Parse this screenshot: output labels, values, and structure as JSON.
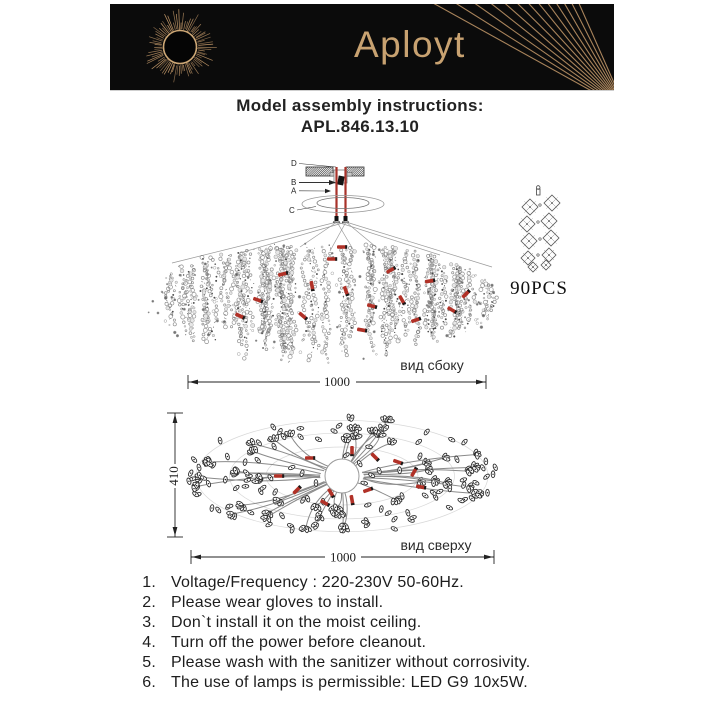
{
  "brand": {
    "name": "Aployt"
  },
  "title": {
    "line1": "Model assembly instructions:",
    "line2": "APL.846.13.10"
  },
  "assembly": {
    "labels": {
      "d": "D",
      "b": "B",
      "a": "A",
      "c": "C"
    },
    "side_caption": "вид сбоку",
    "side_width": "1000",
    "parts_count": "90PCS"
  },
  "top_view": {
    "caption": "вид сверху",
    "width": "1000",
    "depth": "410"
  },
  "instructions": {
    "items": [
      {
        "num": "1.",
        "text": "Voltage/Frequency : 220-230V 50-60Hz."
      },
      {
        "num": "2.",
        "text": "Please wear gloves to install."
      },
      {
        "num": "3.",
        "text": "Don`t install it on the moist ceiling."
      },
      {
        "num": "4.",
        "text": "Turn off the power before cleanout."
      },
      {
        "num": "5.",
        "text": "Please wash with the sanitizer without corrosivity."
      },
      {
        "num": "6.",
        "text": "The use of lamps is permissible: LED G9 10x5W."
      }
    ]
  },
  "colors": {
    "gold": "#c59a6a",
    "banner": "#0b0b0b",
    "red": "#b13127",
    "ink": "#1c1c1c"
  }
}
